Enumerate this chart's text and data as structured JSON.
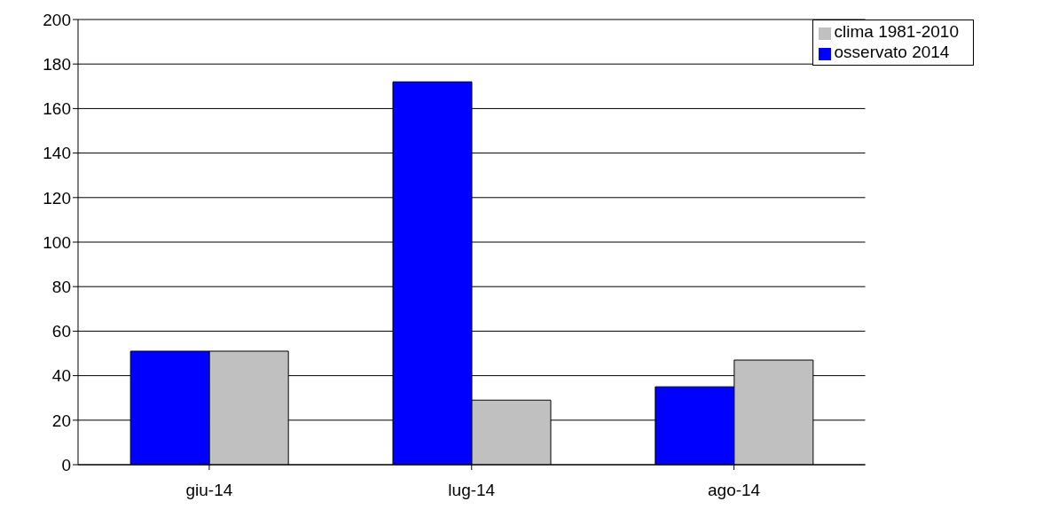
{
  "chart_data": {
    "type": "bar",
    "categories": [
      "giu-14",
      "lug-14",
      "ago-14"
    ],
    "series": [
      {
        "name": "osservato 2014",
        "color": "#0000ff",
        "values": [
          51,
          172,
          35
        ]
      },
      {
        "name": "clima 1981-2010",
        "color": "#c0c0c0",
        "values": [
          51,
          29,
          47
        ]
      }
    ],
    "ylim": [
      0,
      200
    ],
    "yticks": [
      0,
      20,
      40,
      60,
      80,
      100,
      120,
      140,
      160,
      180,
      200
    ],
    "grid": "y",
    "legend": "top right"
  }
}
